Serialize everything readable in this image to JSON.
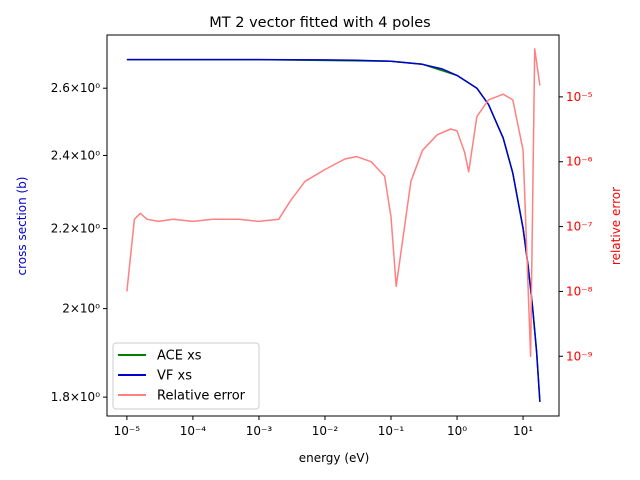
{
  "chart_data": {
    "type": "line",
    "title": "MT 2 vector fitted with 4 poles",
    "xlabel": "energy (eV)",
    "ylabel_left": "cross section (b)",
    "ylabel_right": "relative error",
    "x_scale": "log",
    "y_left_scale": "log",
    "y_right_scale": "log",
    "xlim": [
      5e-06,
      35
    ],
    "ylim_left": [
      1.76,
      2.77
    ],
    "ylim_right": [
      1.2e-10,
      9e-05
    ],
    "x_ticks": [
      {
        "value": 1e-05,
        "label": "10⁻⁵"
      },
      {
        "value": 0.0001,
        "label": "10⁻⁴"
      },
      {
        "value": 0.001,
        "label": "10⁻³"
      },
      {
        "value": 0.01,
        "label": "10⁻²"
      },
      {
        "value": 0.1,
        "label": "10⁻¹"
      },
      {
        "value": 1,
        "label": "10⁰"
      },
      {
        "value": 10,
        "label": "10¹"
      }
    ],
    "y_left_ticks": [
      {
        "value": 1.8,
        "label": "1.8×10⁰"
      },
      {
        "value": 2.0,
        "label": "2×10⁰"
      },
      {
        "value": 2.2,
        "label": "2.2×10⁰"
      },
      {
        "value": 2.4,
        "label": "2.4×10⁰"
      },
      {
        "value": 2.6,
        "label": "2.6×10⁰"
      }
    ],
    "y_right_ticks": [
      {
        "value": 1e-09,
        "label": "10⁻⁹"
      },
      {
        "value": 1e-08,
        "label": "10⁻⁸"
      },
      {
        "value": 1e-07,
        "label": "10⁻⁷"
      },
      {
        "value": 1e-06,
        "label": "10⁻⁶"
      },
      {
        "value": 1e-05,
        "label": "10⁻⁵"
      }
    ],
    "series": [
      {
        "name": "ACE xs",
        "axis": "left",
        "color": "#008000",
        "x": [
          1e-05,
          0.001,
          0.1,
          0.3,
          1,
          2,
          3,
          5,
          7,
          10,
          12,
          14,
          16,
          18
        ],
        "y": [
          2.69,
          2.69,
          2.685,
          2.675,
          2.64,
          2.6,
          2.55,
          2.45,
          2.35,
          2.2,
          2.1,
          2.0,
          1.9,
          1.79
        ]
      },
      {
        "name": "VF xs",
        "axis": "left",
        "color": "#0000cc",
        "x": [
          1e-05,
          0.0001,
          0.001,
          0.01,
          0.03,
          0.1,
          0.3,
          0.6,
          1,
          2,
          3,
          5,
          7,
          10,
          12,
          14,
          16,
          18
        ],
        "y": [
          2.69,
          2.69,
          2.69,
          2.689,
          2.688,
          2.685,
          2.675,
          2.66,
          2.64,
          2.6,
          2.55,
          2.45,
          2.35,
          2.2,
          2.1,
          2.0,
          1.9,
          1.79
        ]
      },
      {
        "name": "Relative error",
        "axis": "right",
        "color": "#ff8080",
        "x": [
          1e-05,
          1.3e-05,
          1.6e-05,
          2e-05,
          3e-05,
          5e-05,
          0.0001,
          0.0002,
          0.0005,
          0.001,
          0.002,
          0.003,
          0.005,
          0.01,
          0.02,
          0.03,
          0.05,
          0.08,
          0.1,
          0.12,
          0.2,
          0.3,
          0.5,
          0.8,
          1.0,
          1.3,
          1.5,
          2,
          3,
          5,
          7,
          10,
          13,
          15,
          18
        ],
        "y": [
          1e-08,
          1.3e-07,
          1.6e-07,
          1.3e-07,
          1.2e-07,
          1.3e-07,
          1.2e-07,
          1.3e-07,
          1.3e-07,
          1.2e-07,
          1.3e-07,
          2.5e-07,
          5e-07,
          7.6e-07,
          1.1e-06,
          1.2e-06,
          1e-06,
          6e-07,
          1.4e-07,
          1.2e-08,
          5e-07,
          1.5e-06,
          2.6e-06,
          3.2e-06,
          3e-06,
          1.4e-06,
          7e-07,
          5e-06,
          9e-06,
          1.1e-05,
          9e-06,
          1.5e-06,
          1e-09,
          5.5e-05,
          1.5e-05
        ]
      }
    ],
    "legend": {
      "position": "lower-left",
      "entries": [
        "ACE xs",
        "VF xs",
        "Relative error"
      ]
    },
    "grid": false
  }
}
